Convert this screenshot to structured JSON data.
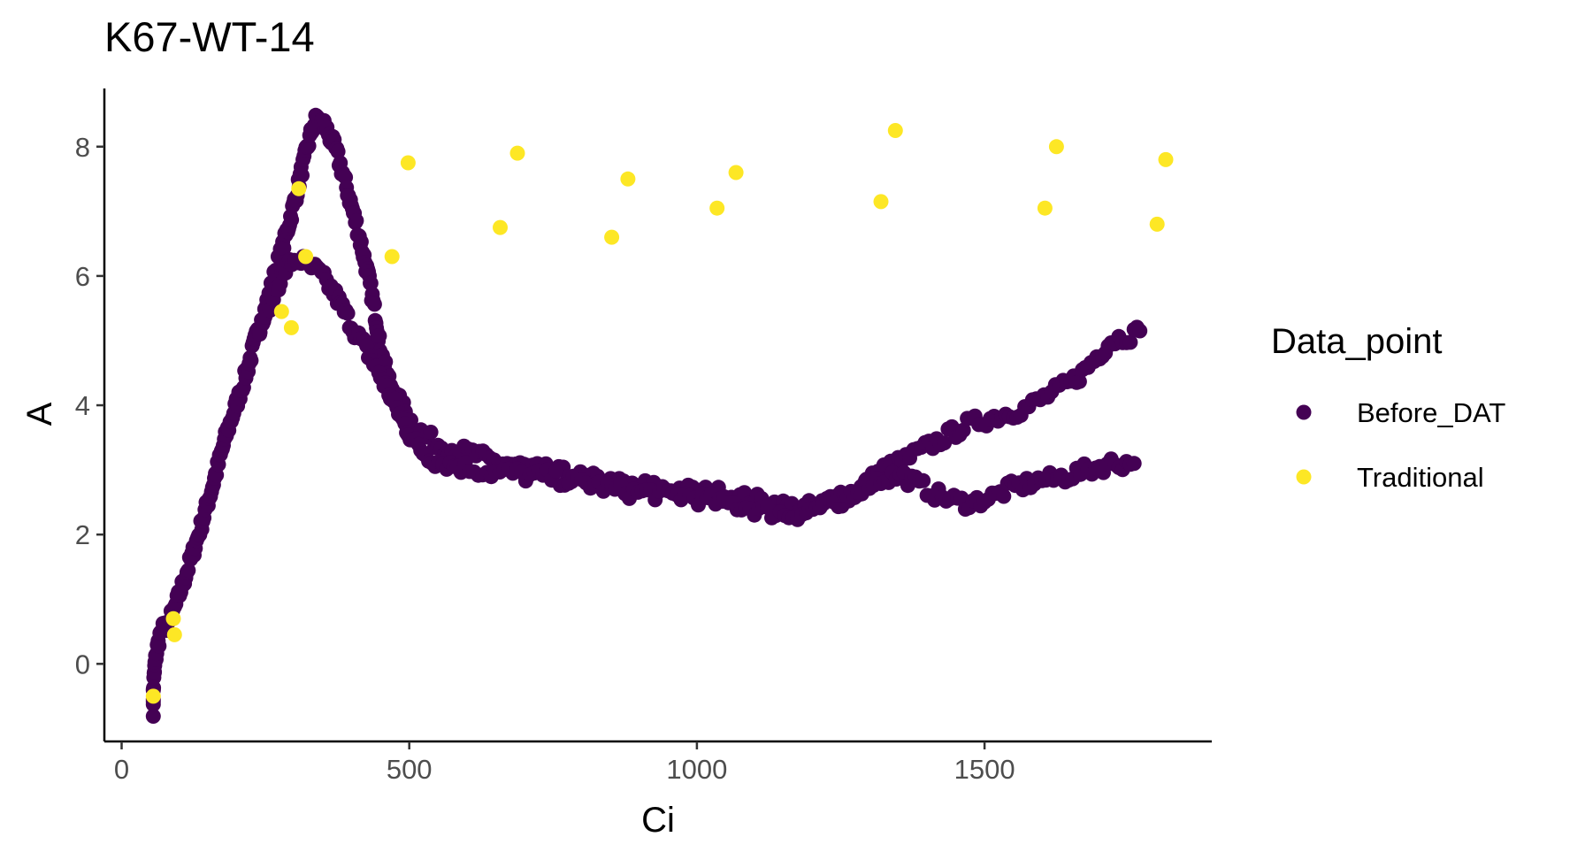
{
  "chart_data": {
    "type": "scatter",
    "title": "K67-WT-14",
    "xlabel": "Ci",
    "ylabel": "A",
    "xlim": [
      -30,
      1895
    ],
    "ylim": [
      -1.2,
      8.9
    ],
    "x_ticks": [
      0,
      500,
      1000,
      1500
    ],
    "y_ticks": [
      0,
      2,
      4,
      6,
      8
    ],
    "grid": false,
    "legend": {
      "title": "Data_point",
      "position": "right"
    },
    "series": [
      {
        "name": "Before_DAT",
        "color": "#440154",
        "segments": [
          {
            "points": [
              [
                55,
                -0.7
              ],
              [
                55,
                -0.4
              ],
              [
                58,
                0.0
              ],
              [
                62,
                0.25
              ],
              [
                68,
                0.5
              ],
              [
                80,
                0.6
              ],
              [
                92,
                0.85
              ],
              [
                105,
                1.2
              ],
              [
                118,
                1.55
              ],
              [
                132,
                1.95
              ],
              [
                145,
                2.35
              ],
              [
                158,
                2.75
              ],
              [
                170,
                3.15
              ],
              [
                182,
                3.55
              ],
              [
                195,
                3.9
              ],
              [
                208,
                4.25
              ],
              [
                220,
                4.6
              ],
              [
                232,
                5.0
              ],
              [
                245,
                5.35
              ],
              [
                258,
                5.75
              ],
              [
                270,
                6.15
              ],
              [
                282,
                6.5
              ],
              [
                292,
                6.85
              ],
              [
                302,
                7.2
              ],
              [
                312,
                7.6
              ],
              [
                322,
                7.95
              ],
              [
                332,
                8.3
              ],
              [
                340,
                8.45
              ],
              [
                352,
                8.35
              ],
              [
                362,
                8.15
              ],
              [
                372,
                7.95
              ],
              [
                384,
                7.6
              ],
              [
                396,
                7.2
              ],
              [
                408,
                6.8
              ],
              [
                420,
                6.35
              ],
              [
                432,
                5.85
              ],
              [
                442,
                5.35
              ],
              [
                450,
                4.85
              ],
              [
                462,
                4.45
              ],
              [
                476,
                4.15
              ],
              [
                490,
                3.95
              ],
              [
                506,
                3.7
              ],
              [
                525,
                3.55
              ],
              [
                550,
                3.4
              ],
              [
                580,
                3.3
              ],
              [
                610,
                3.25
              ],
              [
                640,
                3.15
              ],
              [
                670,
                3.1
              ],
              [
                700,
                3.05
              ],
              [
                730,
                3.0
              ],
              [
                760,
                2.95
              ],
              [
                790,
                2.9
              ],
              [
                820,
                2.85
              ],
              [
                850,
                2.8
              ],
              [
                880,
                2.75
              ],
              [
                910,
                2.75
              ],
              [
                940,
                2.7
              ],
              [
                970,
                2.7
              ],
              [
                1000,
                2.65
              ],
              [
                1030,
                2.65
              ],
              [
                1060,
                2.6
              ],
              [
                1090,
                2.55
              ],
              [
                1120,
                2.5
              ],
              [
                1150,
                2.45
              ],
              [
                1180,
                2.4
              ],
              [
                1210,
                2.45
              ],
              [
                1240,
                2.5
              ],
              [
                1270,
                2.6
              ],
              [
                1290,
                2.75
              ],
              [
                1310,
                2.9
              ],
              [
                1330,
                3.05
              ],
              [
                1350,
                3.1
              ],
              [
                1370,
                3.2
              ],
              [
                1390,
                3.3
              ],
              [
                1410,
                3.4
              ],
              [
                1430,
                3.5
              ],
              [
                1450,
                3.6
              ],
              [
                1470,
                3.7
              ],
              [
                1490,
                3.75
              ],
              [
                1510,
                3.8
              ],
              [
                1530,
                3.85
              ],
              [
                1550,
                3.9
              ],
              [
                1570,
                3.95
              ],
              [
                1590,
                4.05
              ],
              [
                1610,
                4.15
              ],
              [
                1630,
                4.25
              ],
              [
                1650,
                4.35
              ],
              [
                1670,
                4.5
              ],
              [
                1690,
                4.7
              ],
              [
                1705,
                4.85
              ],
              [
                1720,
                5.0
              ],
              [
                1740,
                5.05
              ],
              [
                1760,
                5.1
              ],
              [
                1770,
                5.15
              ]
            ],
            "jitter": 0.11
          },
          {
            "points": [
              [
                240,
                5.2
              ],
              [
                252,
                5.45
              ],
              [
                264,
                5.7
              ],
              [
                276,
                5.95
              ],
              [
                288,
                6.15
              ],
              [
                300,
                6.25
              ],
              [
                312,
                6.25
              ],
              [
                324,
                6.15
              ],
              [
                336,
                6.1
              ],
              [
                348,
                6.0
              ],
              [
                360,
                5.85
              ],
              [
                372,
                5.7
              ],
              [
                384,
                5.5
              ],
              [
                396,
                5.3
              ],
              [
                408,
                5.1
              ],
              [
                420,
                4.95
              ],
              [
                432,
                4.75
              ],
              [
                444,
                4.55
              ],
              [
                456,
                4.35
              ],
              [
                470,
                4.1
              ],
              [
                484,
                3.85
              ],
              [
                498,
                3.6
              ],
              [
                512,
                3.4
              ],
              [
                528,
                3.25
              ],
              [
                545,
                3.15
              ],
              [
                565,
                3.1
              ],
              [
                590,
                3.05
              ],
              [
                620,
                3.0
              ],
              [
                650,
                2.95
              ],
              [
                680,
                2.95
              ],
              [
                710,
                2.9
              ],
              [
                740,
                2.9
              ],
              [
                770,
                2.85
              ],
              [
                800,
                2.8
              ],
              [
                830,
                2.75
              ],
              [
                860,
                2.7
              ],
              [
                890,
                2.65
              ],
              [
                920,
                2.65
              ],
              [
                950,
                2.6
              ],
              [
                980,
                2.6
              ],
              [
                1010,
                2.55
              ],
              [
                1040,
                2.5
              ],
              [
                1070,
                2.45
              ],
              [
                1100,
                2.4
              ],
              [
                1130,
                2.35
              ],
              [
                1160,
                2.3
              ],
              [
                1190,
                2.35
              ],
              [
                1220,
                2.45
              ],
              [
                1250,
                2.55
              ],
              [
                1280,
                2.7
              ],
              [
                1300,
                2.8
              ],
              [
                1320,
                2.85
              ],
              [
                1340,
                2.9
              ],
              [
                1360,
                2.9
              ],
              [
                1380,
                2.8
              ],
              [
                1400,
                2.7
              ],
              [
                1420,
                2.6
              ],
              [
                1440,
                2.55
              ],
              [
                1460,
                2.5
              ],
              [
                1480,
                2.5
              ],
              [
                1500,
                2.55
              ],
              [
                1520,
                2.6
              ],
              [
                1540,
                2.7
              ],
              [
                1560,
                2.75
              ],
              [
                1580,
                2.8
              ],
              [
                1600,
                2.85
              ],
              [
                1620,
                2.85
              ],
              [
                1640,
                2.9
              ],
              [
                1660,
                2.95
              ],
              [
                1680,
                3.0
              ],
              [
                1700,
                3.05
              ],
              [
                1720,
                3.1
              ],
              [
                1740,
                3.1
              ],
              [
                1760,
                3.1
              ]
            ],
            "jitter": 0.11
          }
        ]
      },
      {
        "name": "Traditional",
        "color": "#fde725",
        "points": [
          [
            55,
            -0.5
          ],
          [
            90,
            0.7
          ],
          [
            92,
            0.45
          ],
          [
            278,
            5.45
          ],
          [
            295,
            5.2
          ],
          [
            308,
            7.35
          ],
          [
            320,
            6.3
          ],
          [
            470,
            6.3
          ],
          [
            498,
            7.75
          ],
          [
            658,
            6.75
          ],
          [
            688,
            7.9
          ],
          [
            852,
            6.6
          ],
          [
            880,
            7.5
          ],
          [
            1035,
            7.05
          ],
          [
            1068,
            7.6
          ],
          [
            1320,
            7.15
          ],
          [
            1345,
            8.25
          ],
          [
            1605,
            7.05
          ],
          [
            1625,
            8.0
          ],
          [
            1800,
            6.8
          ],
          [
            1815,
            7.8
          ]
        ]
      }
    ]
  }
}
